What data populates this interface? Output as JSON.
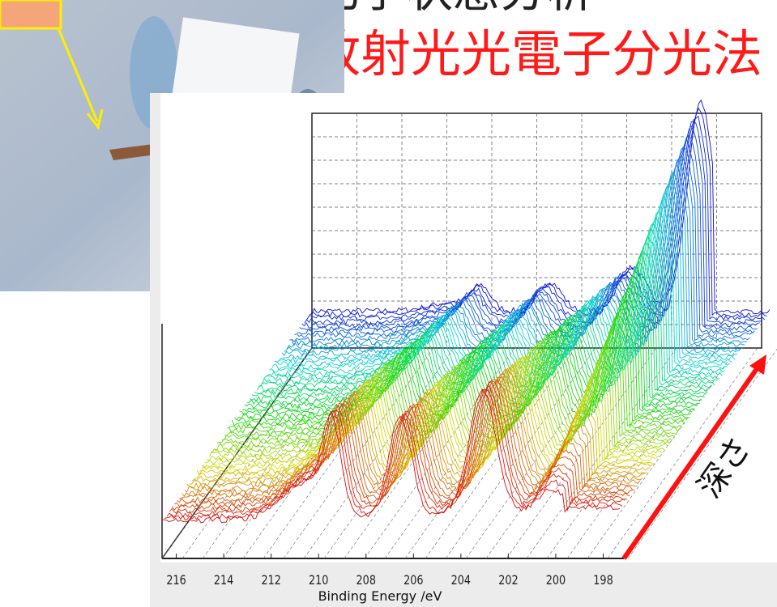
{
  "header": {
    "subtitle": "化学状態分析",
    "title": "放射光光電子分光法"
  },
  "plot": {
    "x_label": "Binding Energy /eV",
    "xlim": [
      216.6,
      197.3
    ],
    "xticks": [
      216,
      214,
      212,
      210,
      208,
      206,
      204,
      202,
      200,
      198
    ],
    "depth_label": "深さ"
  }
}
